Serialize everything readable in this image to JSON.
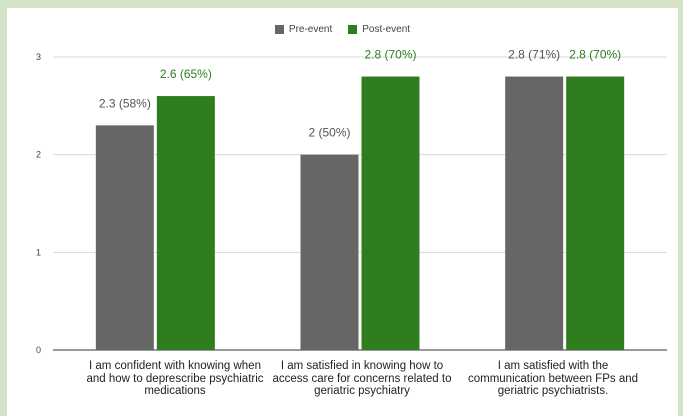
{
  "chart_data": {
    "type": "bar",
    "categories": [
      "I am confident with knowing when and how to deprescribe psychiatric medications",
      "I am satisfied in knowing how to access care for concerns related to geriatric psychiatry",
      "I am satisfied with the communication between FPs and geriatric psychiatrists."
    ],
    "series": [
      {
        "name": "Pre-event",
        "color": "#666666",
        "values": [
          2.3,
          2.0,
          2.8
        ],
        "labels": [
          "2.3 (58%)",
          "2 (50%)",
          "2.8 (71%)"
        ]
      },
      {
        "name": "Post-event",
        "color": "#2e7d1f",
        "values": [
          2.6,
          2.8,
          2.8
        ],
        "labels": [
          "2.6 (65%)",
          "2.8 (70%)",
          "2.8 (70%)"
        ]
      }
    ],
    "ylim": [
      0,
      3
    ],
    "yticks": [
      "0",
      "1",
      "2",
      "3"
    ],
    "legend_position": "top-center",
    "grid": true
  }
}
